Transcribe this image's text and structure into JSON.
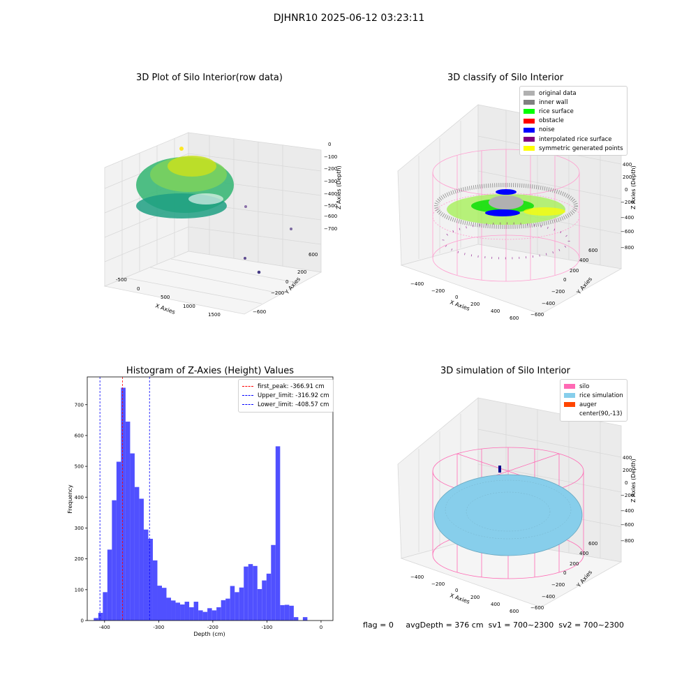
{
  "figure": {
    "title": "DJHNR10 2025-06-12 03:23:11"
  },
  "panels": {
    "raw": {
      "title": "3D Plot of Silo Interior(row data)",
      "xlabel": "X Axies",
      "ylabel": "Y Axies",
      "zlabel": "Z Axies (Depth)",
      "x_ticks": [
        "-500",
        "0",
        "500",
        "1000",
        "1500"
      ],
      "y_ticks": [
        "600",
        "400",
        "200",
        "0",
        "−200",
        "−400",
        "−600"
      ],
      "z_ticks": [
        "0",
        "−100",
        "−200",
        "−300",
        "−400",
        "−500",
        "−600",
        "−700"
      ]
    },
    "classify": {
      "title": "3D classify of Silo Interior",
      "xlabel": "X Axies",
      "ylabel": "Y Axies",
      "zlabel": "Z Axies (Depth)",
      "x_ticks": [
        "−400",
        "−200",
        "0",
        "200",
        "400",
        "600"
      ],
      "y_ticks": [
        "600",
        "400",
        "200",
        "0",
        "−200",
        "−400",
        "−600"
      ],
      "z_ticks": [
        "400",
        "200",
        "0",
        "−200",
        "−400",
        "−600",
        "−800"
      ],
      "legend": [
        {
          "label": "original data",
          "color": "#b0b0b0"
        },
        {
          "label": "inner wall",
          "color": "#808080"
        },
        {
          "label": "rice surface",
          "color": "#00ff00"
        },
        {
          "label": "obstacle",
          "color": "#ff0000"
        },
        {
          "label": "noise",
          "color": "#0000ff"
        },
        {
          "label": "interpolated rice surface",
          "color": "#800080"
        },
        {
          "label": "symmetric generated points",
          "color": "#ffff00"
        }
      ]
    },
    "simulation": {
      "title": "3D simulation of Silo Interior",
      "xlabel": "X Axies",
      "ylabel": "Y Axies",
      "zlabel": "Z Axies (Depth)",
      "x_ticks": [
        "−400",
        "−200",
        "0",
        "200",
        "400",
        "600"
      ],
      "y_ticks": [
        "600",
        "400",
        "200",
        "0",
        "−200",
        "−400",
        "−600"
      ],
      "z_ticks": [
        "400",
        "200",
        "0",
        "−200",
        "−400",
        "−600",
        "−800"
      ],
      "legend": [
        {
          "label": "silo",
          "color": "#ff69b4"
        },
        {
          "label": "rice simulation",
          "color": "#87ceeb"
        },
        {
          "label": "auger",
          "color": "#ff4500"
        },
        {
          "label": "center(90,-13)",
          "color": "#ffffff"
        }
      ]
    }
  },
  "footer": {
    "flag": "flag = 0",
    "avg_depth": "avgDepth = 376 cm",
    "sv1": "sv1 = 700~2300",
    "sv2": "sv2 = 700~2300"
  },
  "chart_data": {
    "type": "bar",
    "title": "Histogram of Z-Axies (Height) Values",
    "xlabel": "Depth (cm)",
    "ylabel": "Frequency",
    "xlim": [
      -432,
      22
    ],
    "ylim": [
      0,
      790
    ],
    "x_ticks": [
      -400,
      -300,
      -200,
      -100,
      0
    ],
    "y_ticks": [
      0,
      100,
      200,
      300,
      400,
      500,
      600,
      700
    ],
    "bar_color": "#5050ff",
    "bin_width": 8.4,
    "bin_start": -420,
    "values": [
      8,
      25,
      92,
      230,
      390,
      515,
      755,
      645,
      542,
      433,
      395,
      295,
      265,
      195,
      113,
      106,
      74,
      65,
      58,
      52,
      61,
      43,
      61,
      33,
      28,
      40,
      33,
      43,
      66,
      71,
      112,
      92,
      107,
      175,
      183,
      177,
      102,
      130,
      152,
      245,
      565,
      50,
      51,
      48,
      11,
      0,
      11
    ],
    "lines": [
      {
        "label": "first_peak: -366.91 cm",
        "x": -366.91,
        "color": "#ff0000"
      },
      {
        "label": "Upper_limit: -316.92 cm",
        "x": -316.92,
        "color": "#0000ff"
      },
      {
        "label": "Lower_limit: -408.57 cm",
        "x": -408.57,
        "color": "#0000ff"
      }
    ]
  }
}
